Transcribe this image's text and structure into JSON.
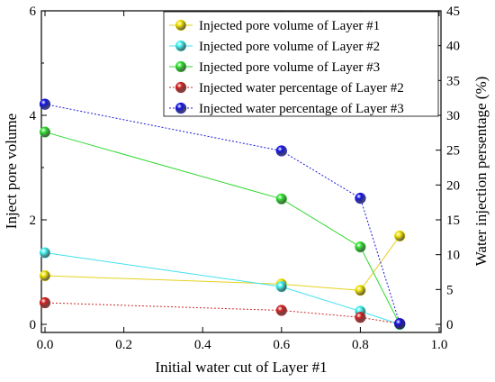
{
  "chart_data": {
    "type": "line",
    "xlabel": "Initial water cut of Layer #1",
    "ylabel": "Inject pore volume",
    "y2label": "Water injection persentage (%)",
    "xlim": [
      0.0,
      1.0
    ],
    "ylim": [
      0,
      6
    ],
    "y2lim": [
      0,
      45
    ],
    "x_ticks": [
      "0.0",
      "0.2",
      "0.4",
      "0.6",
      "0.8",
      "1.0"
    ],
    "y_ticks": [
      "0",
      "2",
      "4",
      "6"
    ],
    "y2_ticks": [
      "0",
      "5",
      "10",
      "15",
      "20",
      "25",
      "30",
      "35",
      "40",
      "45"
    ],
    "grid": false,
    "legend_position": "top-right",
    "series": [
      {
        "name": "Injected pore volume of Layer #1",
        "axis": "left",
        "line_style": "solid",
        "color": "#e6d21e",
        "marker_color": "#f0e000",
        "x": [
          0.0,
          0.6,
          0.8,
          0.9
        ],
        "y": [
          0.93,
          0.77,
          0.65,
          1.69
        ]
      },
      {
        "name": "Injected pore volume of Layer #2",
        "axis": "left",
        "line_style": "solid",
        "color": "#40e0f0",
        "marker_color": "#40f0f0",
        "x": [
          0.0,
          0.6,
          0.8,
          0.9
        ],
        "y": [
          1.37,
          0.72,
          0.25,
          0.0
        ]
      },
      {
        "name": "Injected pore volume of Layer #3",
        "axis": "left",
        "line_style": "solid",
        "color": "#30d830",
        "marker_color": "#30e030",
        "x": [
          0.0,
          0.6,
          0.8,
          0.9
        ],
        "y": [
          3.68,
          2.4,
          1.48,
          0.0
        ]
      },
      {
        "name": "Injected water percentage of Layer #2",
        "axis": "right",
        "line_style": "dotted",
        "color": "#cc2a2a",
        "marker_color": "#d02020",
        "x": [
          0.0,
          0.6,
          0.8,
          0.9
        ],
        "y": [
          3.1,
          2.0,
          1.0,
          0.1
        ]
      },
      {
        "name": "Injected water percentage of Layer #3",
        "axis": "right",
        "line_style": "dotted",
        "color": "#1a1ad8",
        "marker_color": "#1010e0",
        "x": [
          0.0,
          0.6,
          0.8,
          0.9
        ],
        "y": [
          31.6,
          24.9,
          18.1,
          0.1
        ]
      }
    ]
  }
}
